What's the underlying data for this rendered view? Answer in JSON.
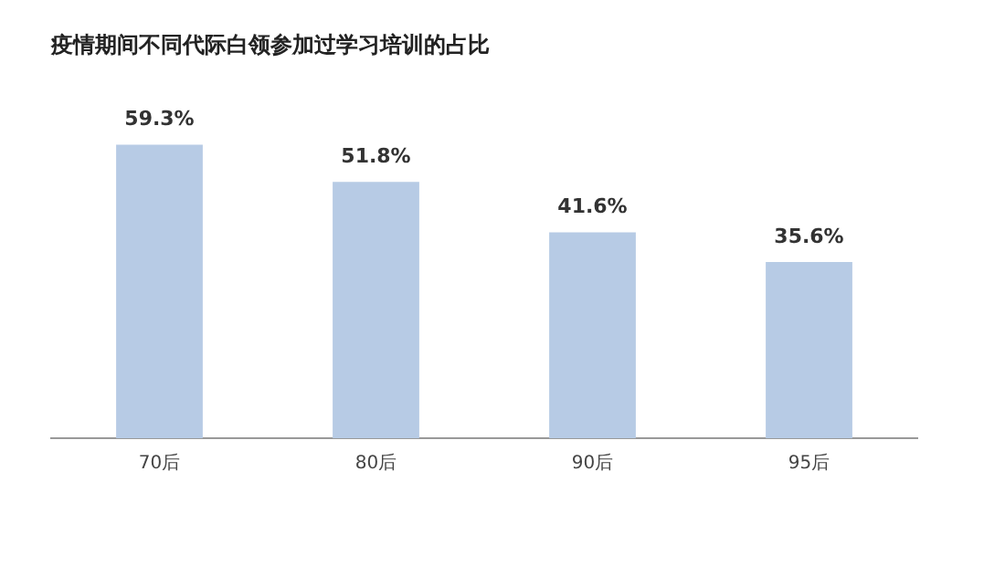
{
  "chart_data": {
    "type": "bar",
    "title": "疫情期间不同代际白领参加过学习培训的占比",
    "categories": [
      "70后",
      "80后",
      "90后",
      "95后"
    ],
    "values": [
      59.3,
      51.8,
      41.6,
      35.6
    ],
    "value_labels": [
      "59.3%",
      "51.8%",
      "41.6%",
      "35.6%"
    ],
    "color": "#b7cbe5",
    "grid": false,
    "legend": false
  }
}
